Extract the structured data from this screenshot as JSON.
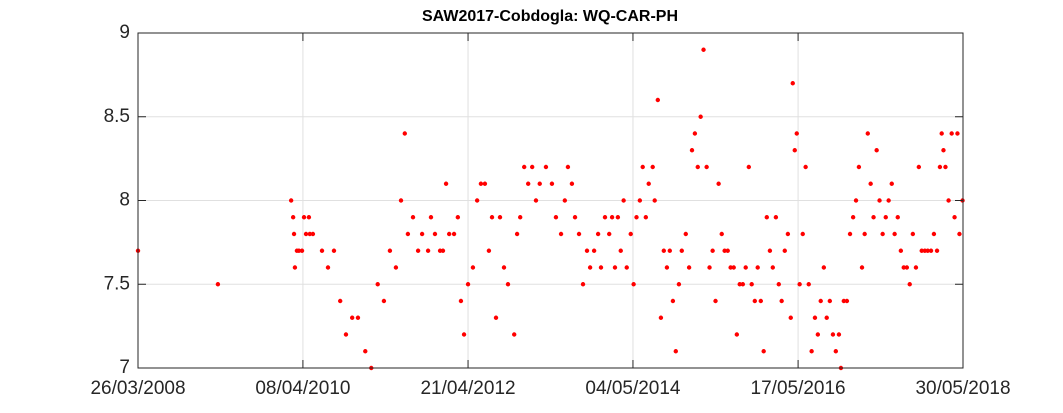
{
  "chart_data": {
    "type": "scatter",
    "title": "SAW2017-Cobdogla: WQ-CAR-PH",
    "color": "#ff0000",
    "grid": true,
    "xlim": [
      "26/03/2008",
      "30/05/2018"
    ],
    "xticks": [
      "26/03/2008",
      "08/04/2010",
      "21/04/2012",
      "04/05/2014",
      "17/05/2016",
      "30/05/2018"
    ],
    "ylim": [
      7,
      9
    ],
    "yticks": [
      7,
      7.5,
      8,
      8.5,
      9
    ],
    "x": [
      "26/03/2008",
      "21/03/2009",
      "14/02/2010",
      "23/02/2010",
      "27/02/2010",
      "03/03/2010",
      "12/03/2010",
      "21/03/2010",
      "04/04/2010",
      "13/04/2010",
      "22/04/2010",
      "05/05/2010",
      "09/05/2010",
      "23/05/2010",
      "03/07/2010",
      "30/07/2010",
      "26/08/2010",
      "23/09/2010",
      "19/10/2010",
      "16/11/2010",
      "12/12/2010",
      "14/01/2011",
      "10/02/2011",
      "11/03/2011",
      "08/04/2011",
      "05/05/2011",
      "01/06/2011",
      "24/06/2011",
      "11/07/2011",
      "25/07/2011",
      "17/08/2011",
      "09/09/2011",
      "27/09/2011",
      "24/10/2011",
      "06/11/2011",
      "24/11/2011",
      "17/12/2011",
      "30/12/2011",
      "13/01/2012",
      "27/01/2012",
      "18/02/2012",
      "06/03/2012",
      "20/03/2012",
      "03/04/2012",
      "21/04/2012",
      "13/05/2012",
      "01/06/2012",
      "18/06/2012",
      "06/07/2012",
      "24/07/2012",
      "07/08/2012",
      "25/08/2012",
      "12/09/2012",
      "30/09/2012",
      "18/10/2012",
      "15/11/2012",
      "28/11/2012",
      "12/12/2012",
      "30/12/2012",
      "17/01/2013",
      "04/02/2013",
      "21/02/2013",
      "10/03/2013",
      "07/04/2013",
      "04/05/2013",
      "22/05/2013",
      "14/06/2013",
      "01/07/2013",
      "15/07/2013",
      "02/08/2013",
      "16/08/2013",
      "03/09/2013",
      "21/09/2013",
      "09/10/2013",
      "23/10/2013",
      "10/11/2013",
      "28/11/2013",
      "11/12/2013",
      "29/12/2013",
      "17/01/2014",
      "30/01/2014",
      "12/02/2014",
      "25/02/2014",
      "10/03/2014",
      "23/03/2014",
      "06/04/2014",
      "24/04/2014",
      "07/05/2014",
      "20/05/2014",
      "04/06/2014",
      "17/06/2014",
      "01/07/2014",
      "14/07/2014",
      "01/08/2014",
      "10/08/2014",
      "24/08/2014",
      "07/09/2014",
      "20/09/2014",
      "04/10/2014",
      "17/10/2014",
      "31/10/2014",
      "13/11/2014",
      "27/11/2014",
      "10/12/2014",
      "28/12/2014",
      "12/01/2015",
      "25/01/2015",
      "07/02/2015",
      "20/02/2015",
      "05/03/2015",
      "18/03/2015",
      "01/04/2015",
      "14/04/2015",
      "28/04/2015",
      "11/05/2015",
      "25/05/2015",
      "08/06/2015",
      "21/06/2015",
      "05/07/2015",
      "18/07/2015",
      "01/08/2015",
      "15/08/2015",
      "28/08/2015",
      "11/09/2015",
      "24/09/2015",
      "08/10/2015",
      "21/10/2015",
      "04/11/2015",
      "17/11/2015",
      "01/12/2015",
      "14/12/2015",
      "28/12/2015",
      "11/01/2016",
      "24/01/2016",
      "07/02/2016",
      "20/02/2016",
      "04/03/2016",
      "18/03/2016",
      "01/04/2016",
      "14/04/2016",
      "23/04/2016",
      "02/05/2016",
      "11/05/2016",
      "24/05/2016",
      "07/06/2016",
      "20/06/2016",
      "04/07/2016",
      "17/07/2016",
      "01/08/2016",
      "14/08/2016",
      "27/08/2016",
      "10/09/2016",
      "23/09/2016",
      "07/10/2016",
      "21/10/2016",
      "03/11/2016",
      "17/11/2016",
      "26/11/2016",
      "09/12/2016",
      "23/12/2016",
      "06/01/2017",
      "20/01/2017",
      "02/02/2017",
      "15/02/2017",
      "01/03/2017",
      "13/03/2017",
      "27/03/2017",
      "09/04/2017",
      "22/04/2017",
      "06/05/2017",
      "19/05/2017",
      "02/06/2017",
      "16/06/2017",
      "29/06/2017",
      "13/07/2017",
      "26/07/2017",
      "09/08/2017",
      "23/08/2017",
      "05/09/2017",
      "19/09/2017",
      "02/10/2017",
      "16/10/2017",
      "30/10/2017",
      "12/11/2017",
      "25/11/2017",
      "09/12/2017",
      "22/12/2017",
      "06/01/2018",
      "19/01/2018",
      "02/02/2018",
      "15/02/2018",
      "23/02/2018",
      "03/03/2018",
      "12/03/2018",
      "26/03/2018",
      "09/04/2018",
      "22/04/2018",
      "05/05/2018",
      "14/05/2018",
      "28/05/2018"
    ],
    "values": [
      7.7,
      7.5,
      8.0,
      7.9,
      7.8,
      7.6,
      7.7,
      7.7,
      7.7,
      7.9,
      7.8,
      7.9,
      7.8,
      7.8,
      7.7,
      7.6,
      7.7,
      7.4,
      7.2,
      7.3,
      7.3,
      7.1,
      7.0,
      7.5,
      7.4,
      7.7,
      7.6,
      8.0,
      8.4,
      7.8,
      7.9,
      7.7,
      7.8,
      7.7,
      7.9,
      7.8,
      7.7,
      7.7,
      8.1,
      7.8,
      7.8,
      7.9,
      7.4,
      7.2,
      7.5,
      7.6,
      8.0,
      8.1,
      8.1,
      7.7,
      7.9,
      7.3,
      7.9,
      7.6,
      7.5,
      7.2,
      7.8,
      7.9,
      8.2,
      8.1,
      8.2,
      8.0,
      8.1,
      8.2,
      8.1,
      7.9,
      7.8,
      8.0,
      8.2,
      8.1,
      7.9,
      7.8,
      7.5,
      7.7,
      7.6,
      7.7,
      7.8,
      7.6,
      7.9,
      7.8,
      7.9,
      7.6,
      7.9,
      7.7,
      8.0,
      7.6,
      7.8,
      7.5,
      7.9,
      8.0,
      8.2,
      7.9,
      8.1,
      8.2,
      8.0,
      8.6,
      7.3,
      7.7,
      7.6,
      7.7,
      7.4,
      7.1,
      7.5,
      7.7,
      7.8,
      7.6,
      8.3,
      8.4,
      8.2,
      8.5,
      8.9,
      8.2,
      7.6,
      7.7,
      7.4,
      8.1,
      7.8,
      7.7,
      7.7,
      7.6,
      7.6,
      7.2,
      7.5,
      7.5,
      7.6,
      8.2,
      7.5,
      7.4,
      7.6,
      7.4,
      7.1,
      7.9,
      7.7,
      7.6,
      7.9,
      7.5,
      7.4,
      7.7,
      7.8,
      7.3,
      8.7,
      8.3,
      8.4,
      7.5,
      7.8,
      8.2,
      7.5,
      7.1,
      7.3,
      7.2,
      7.4,
      7.6,
      7.3,
      7.4,
      7.2,
      7.1,
      7.2,
      7.0,
      7.4,
      7.4,
      7.8,
      7.9,
      8.0,
      8.2,
      7.6,
      7.8,
      8.4,
      8.1,
      7.9,
      8.3,
      8.0,
      7.8,
      7.9,
      8.0,
      8.1,
      7.8,
      7.9,
      7.7,
      7.6,
      7.6,
      7.5,
      7.8,
      7.6,
      8.2,
      7.7,
      7.7,
      7.7,
      7.7,
      7.8,
      7.7,
      8.2,
      8.4,
      8.3,
      8.2,
      8.0,
      8.4,
      7.9,
      8.4,
      7.8,
      8.0
    ]
  }
}
